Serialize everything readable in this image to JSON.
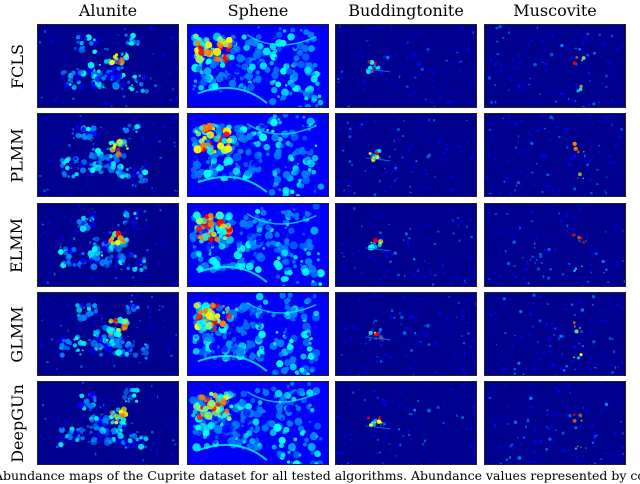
{
  "columns": [
    "Alunite",
    "Sphene",
    "Buddingtonite",
    "Muscovite"
  ],
  "rows": [
    "FCLS",
    "PLMM",
    "ELMM",
    "GLMM",
    "DeepGUn"
  ],
  "caption": "Abundance maps of the Cuprite dataset for all tested algorithms. Abundance values represented by colo",
  "colormap": [
    "#00008f",
    "#0000ff",
    "#0080ff",
    "#00ffff",
    "#80ff80",
    "#ffff00",
    "#ff8000",
    "#ff0000",
    "#800000"
  ]
}
